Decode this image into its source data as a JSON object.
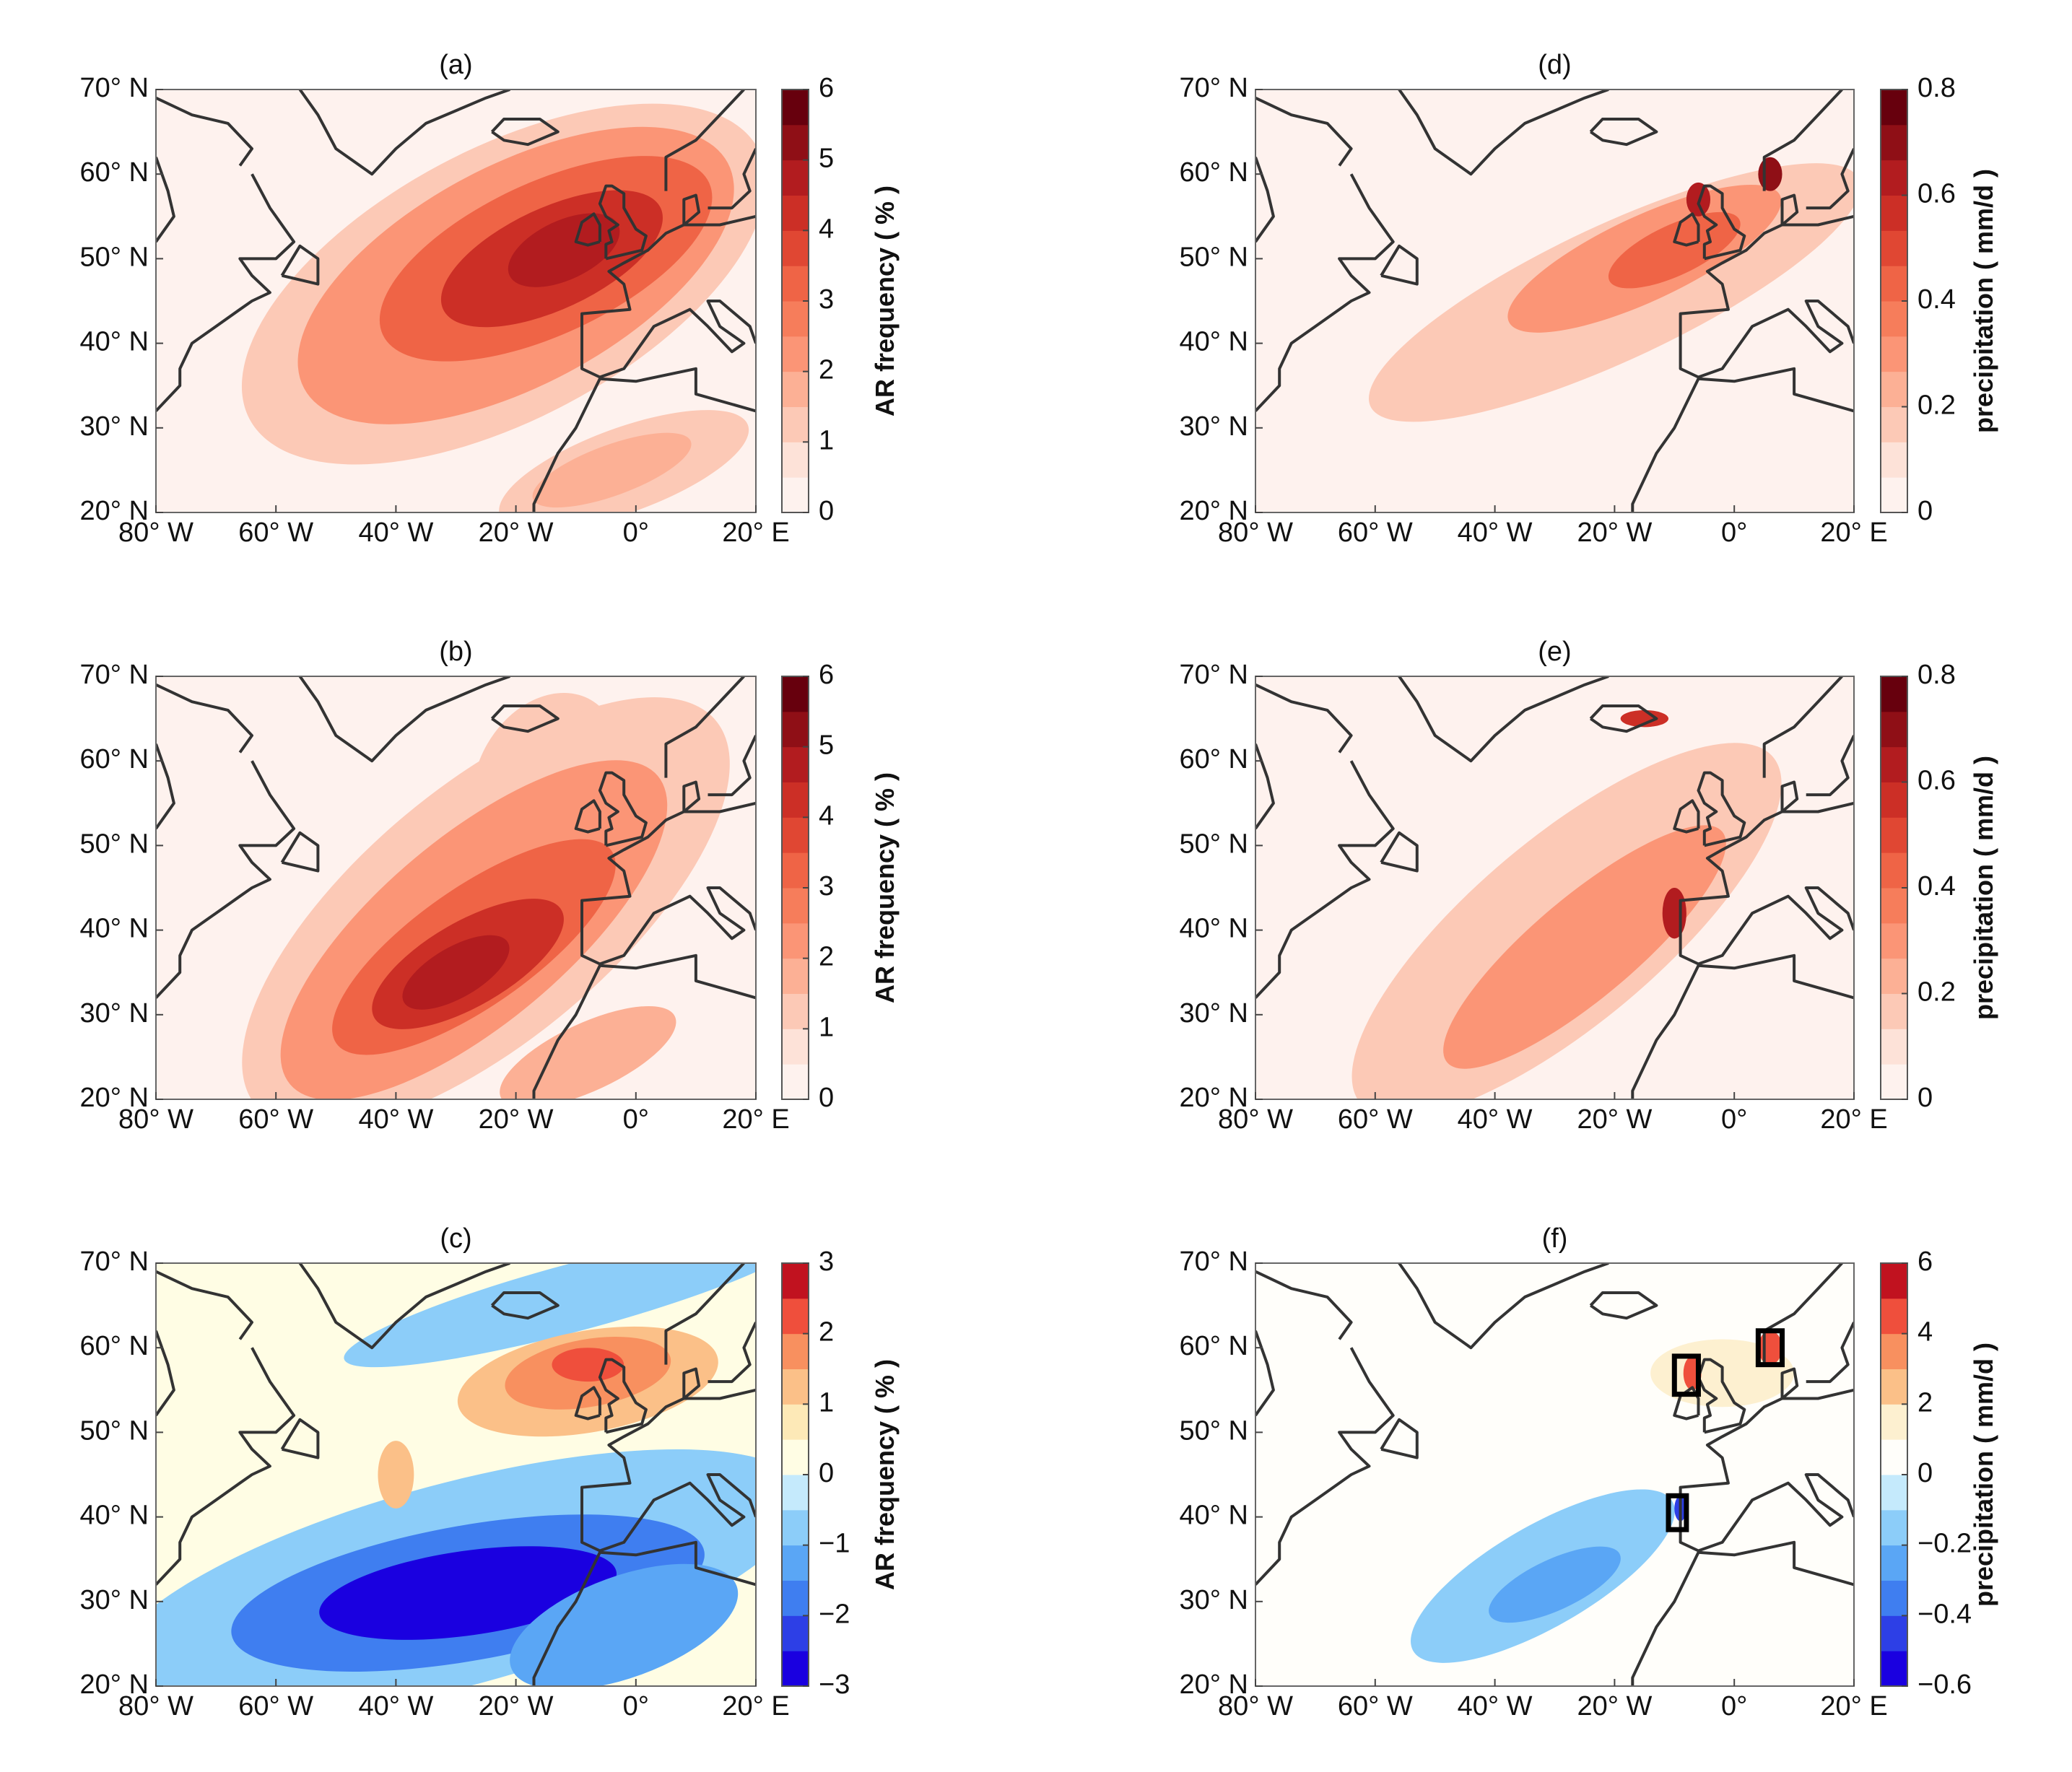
{
  "chart_data": [
    {
      "type": "map",
      "title": "(a)",
      "xlim": [
        -80,
        20
      ],
      "ylim": [
        20,
        70
      ],
      "xticks": [
        {
          "value": -80,
          "label": "80° W"
        },
        {
          "value": -60,
          "label": "60° W"
        },
        {
          "value": -40,
          "label": "40° W"
        },
        {
          "value": -20,
          "label": "20° W"
        },
        {
          "value": 0,
          "label": "0°"
        },
        {
          "value": 20,
          "label": "20° E"
        }
      ],
      "yticks": [
        {
          "value": 20,
          "label": "20° N"
        },
        {
          "value": 30,
          "label": "30° N"
        },
        {
          "value": 40,
          "label": "40° N"
        },
        {
          "value": 50,
          "label": "50° N"
        },
        {
          "value": 60,
          "label": "60° N"
        },
        {
          "value": 70,
          "label": "70° N"
        }
      ],
      "colorbar": {
        "label": "AR frequency ( % )",
        "lim": [
          0,
          6
        ],
        "ticks": [
          0,
          1,
          2,
          3,
          4,
          5,
          6
        ],
        "colors": [
          "#fef2ee",
          "#fde2d8",
          "#fcc9b6",
          "#fcb095",
          "#fb9576",
          "#f67d5b",
          "#ef6446",
          "#e04733",
          "#cc2f26",
          "#b21c1f",
          "#8f0f16",
          "#67000d"
        ]
      }
    },
    {
      "type": "map",
      "title": "(b)",
      "xlim": [
        -80,
        20
      ],
      "ylim": [
        20,
        70
      ],
      "xticks": [
        {
          "value": -80,
          "label": "80° W"
        },
        {
          "value": -60,
          "label": "60° W"
        },
        {
          "value": -40,
          "label": "40° W"
        },
        {
          "value": -20,
          "label": "20° W"
        },
        {
          "value": 0,
          "label": "0°"
        },
        {
          "value": 20,
          "label": "20° E"
        }
      ],
      "yticks": [
        {
          "value": 20,
          "label": "20° N"
        },
        {
          "value": 30,
          "label": "30° N"
        },
        {
          "value": 40,
          "label": "40° N"
        },
        {
          "value": 50,
          "label": "50° N"
        },
        {
          "value": 60,
          "label": "60° N"
        },
        {
          "value": 70,
          "label": "70° N"
        }
      ],
      "colorbar": {
        "label": "AR frequency ( % )",
        "lim": [
          0,
          6
        ],
        "ticks": [
          0,
          1,
          2,
          3,
          4,
          5,
          6
        ],
        "colors": [
          "#fef2ee",
          "#fde2d8",
          "#fcc9b6",
          "#fcb095",
          "#fb9576",
          "#f67d5b",
          "#ef6446",
          "#e04733",
          "#cc2f26",
          "#b21c1f",
          "#8f0f16",
          "#67000d"
        ]
      }
    },
    {
      "type": "map",
      "title": "(c)",
      "xlim": [
        -80,
        20
      ],
      "ylim": [
        20,
        70
      ],
      "xticks": [
        {
          "value": -80,
          "label": "80° W"
        },
        {
          "value": -60,
          "label": "60° W"
        },
        {
          "value": -40,
          "label": "40° W"
        },
        {
          "value": -20,
          "label": "20° W"
        },
        {
          "value": 0,
          "label": "0°"
        },
        {
          "value": 20,
          "label": "20° E"
        }
      ],
      "yticks": [
        {
          "value": 20,
          "label": "20° N"
        },
        {
          "value": 30,
          "label": "30° N"
        },
        {
          "value": 40,
          "label": "40° N"
        },
        {
          "value": 50,
          "label": "50° N"
        },
        {
          "value": 60,
          "label": "60° N"
        },
        {
          "value": 70,
          "label": "70° N"
        }
      ],
      "colorbar": {
        "label": "AR frequency ( % )",
        "lim": [
          -3,
          3
        ],
        "ticks": [
          {
            "value": -3,
            "label": "−3"
          },
          {
            "value": -2,
            "label": "−2"
          },
          {
            "value": -1,
            "label": "−1"
          },
          0,
          1,
          2,
          3
        ],
        "colors": [
          "#1a00e0",
          "#2d3fe6",
          "#3f7ef0",
          "#5aa6f5",
          "#8ccdf9",
          "#c5eafc",
          "#fffde4",
          "#fde9b7",
          "#fbc088",
          "#f8905f",
          "#ef4f3c",
          "#c1121f"
        ]
      }
    },
    {
      "type": "map",
      "title": "(d)",
      "xlim": [
        -80,
        20
      ],
      "ylim": [
        20,
        70
      ],
      "xticks": [
        {
          "value": -80,
          "label": "80° W"
        },
        {
          "value": -60,
          "label": "60° W"
        },
        {
          "value": -40,
          "label": "40° W"
        },
        {
          "value": -20,
          "label": "20° W"
        },
        {
          "value": 0,
          "label": "0°"
        },
        {
          "value": 20,
          "label": "20° E"
        }
      ],
      "yticks": [
        {
          "value": 20,
          "label": "20° N"
        },
        {
          "value": 30,
          "label": "30° N"
        },
        {
          "value": 40,
          "label": "40° N"
        },
        {
          "value": 50,
          "label": "50° N"
        },
        {
          "value": 60,
          "label": "60° N"
        },
        {
          "value": 70,
          "label": "70° N"
        }
      ],
      "colorbar": {
        "label": "precipitation ( mm/d )",
        "lim": [
          0,
          0.8
        ],
        "ticks": [
          0,
          0.2,
          0.4,
          0.6,
          0.8
        ],
        "colors": [
          "#fef2ee",
          "#fde2d8",
          "#fcc9b6",
          "#fcb095",
          "#fb9576",
          "#f67d5b",
          "#ef6446",
          "#e04733",
          "#cc2f26",
          "#b21c1f",
          "#8f0f16",
          "#67000d"
        ]
      }
    },
    {
      "type": "map",
      "title": "(e)",
      "xlim": [
        -80,
        20
      ],
      "ylim": [
        20,
        70
      ],
      "xticks": [
        {
          "value": -80,
          "label": "80° W"
        },
        {
          "value": -60,
          "label": "60° W"
        },
        {
          "value": -40,
          "label": "40° W"
        },
        {
          "value": -20,
          "label": "20° W"
        },
        {
          "value": 0,
          "label": "0°"
        },
        {
          "value": 20,
          "label": "20° E"
        }
      ],
      "yticks": [
        {
          "value": 20,
          "label": "20° N"
        },
        {
          "value": 30,
          "label": "30° N"
        },
        {
          "value": 40,
          "label": "40° N"
        },
        {
          "value": 50,
          "label": "50° N"
        },
        {
          "value": 60,
          "label": "60° N"
        },
        {
          "value": 70,
          "label": "70° N"
        }
      ],
      "colorbar": {
        "label": "precipitation ( mm/d )",
        "lim": [
          0,
          0.8
        ],
        "ticks": [
          0,
          0.2,
          0.4,
          0.6,
          0.8
        ],
        "colors": [
          "#fef2ee",
          "#fde2d8",
          "#fcc9b6",
          "#fcb095",
          "#fb9576",
          "#f67d5b",
          "#ef6446",
          "#e04733",
          "#cc2f26",
          "#b21c1f",
          "#8f0f16",
          "#67000d"
        ]
      }
    },
    {
      "type": "map",
      "title": "(f)",
      "xlim": [
        -80,
        20
      ],
      "ylim": [
        20,
        70
      ],
      "xticks": [
        {
          "value": -80,
          "label": "80° W"
        },
        {
          "value": -60,
          "label": "60° W"
        },
        {
          "value": -40,
          "label": "40° W"
        },
        {
          "value": -20,
          "label": "20° W"
        },
        {
          "value": 0,
          "label": "0°"
        },
        {
          "value": 20,
          "label": "20° E"
        }
      ],
      "yticks": [
        {
          "value": 20,
          "label": "20° N"
        },
        {
          "value": 30,
          "label": "30° N"
        },
        {
          "value": 40,
          "label": "40° N"
        },
        {
          "value": 50,
          "label": "50° N"
        },
        {
          "value": 60,
          "label": "60° N"
        },
        {
          "value": 70,
          "label": "70° N"
        }
      ],
      "colorbar": {
        "label": "precipitation ( mm/d )",
        "lim": [
          -0.6,
          6
        ],
        "ticks": [
          {
            "value": -0.6,
            "label": "−0.6"
          },
          {
            "value": -0.4,
            "label": "−0.4"
          },
          {
            "value": -0.2,
            "label": "−0.2"
          },
          0,
          2,
          4,
          6
        ],
        "colors": [
          "#1a00e0",
          "#2d3fe6",
          "#3f7ef0",
          "#5aa6f5",
          "#8ccdf9",
          "#c5eafc",
          "#fffefa",
          "#fdf0d0",
          "#fbc088",
          "#f8905f",
          "#ef4f3c",
          "#c1121f"
        ]
      }
    }
  ]
}
